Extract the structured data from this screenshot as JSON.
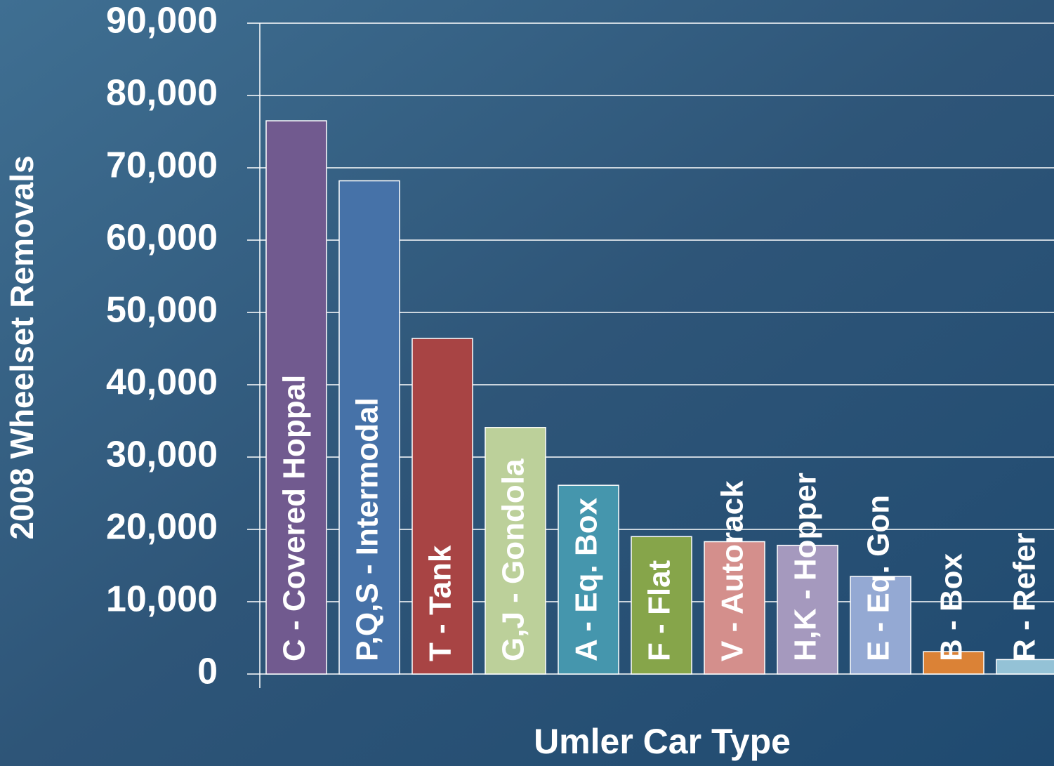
{
  "chart_data": {
    "type": "bar",
    "x_label": "Umler Car Type",
    "y_label": "2008 Wheelset Removals",
    "categories": [
      "C - Covered Hoppal",
      "P,Q,S - Intermodal",
      "T - Tank",
      "G,J - Gondola",
      "A - Eq. Box",
      "F - Flat",
      "V - Autorack",
      "H,K - Hopper",
      "E - Eq. Gon",
      "B - Box",
      "R - Refer"
    ],
    "values": [
      76500,
      68200,
      46400,
      34100,
      26100,
      19000,
      18300,
      17800,
      13500,
      3100,
      2000
    ],
    "colors": [
      "#715a8f",
      "#4672a8",
      "#a84444",
      "#bcd09a",
      "#4596ad",
      "#86a54a",
      "#d48f8c",
      "#a599be",
      "#94a9d3",
      "#db8236",
      "#94c2d6"
    ],
    "ylim": [
      0,
      90000
    ],
    "yticks": [
      0,
      {
        "value": 10000,
        "label": "10,000"
      },
      {
        "value": 20000,
        "label": "20,000"
      },
      {
        "value": 30000,
        "label": "30,000"
      },
      {
        "value": 40000,
        "label": "40,000"
      },
      {
        "value": 50000,
        "label": "50,000"
      },
      {
        "value": 60000,
        "label": "60,000"
      },
      {
        "value": 70000,
        "label": "70,000"
      },
      {
        "value": 80000,
        "label": "80,000"
      },
      {
        "value": 90000,
        "label": "90,000"
      }
    ],
    "grid": true
  }
}
